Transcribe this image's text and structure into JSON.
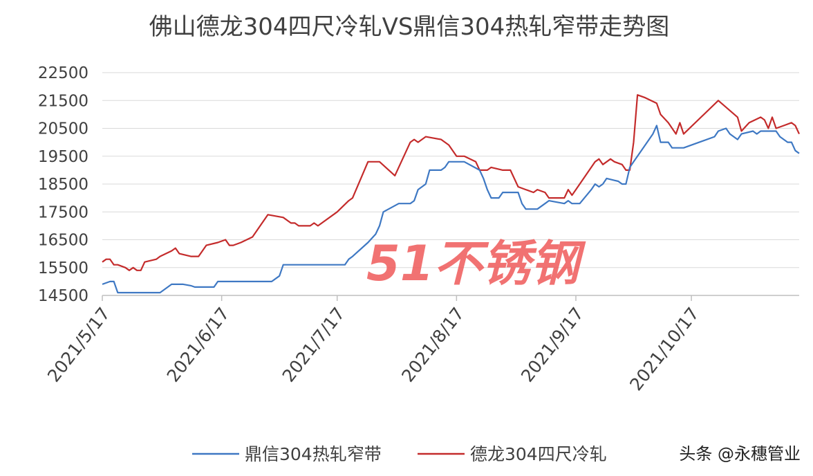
{
  "chart_data": {
    "type": "line",
    "title": "佛山德龙304四尺冷轧VS鼎信304热轧窄带走势图",
    "xlabel": "",
    "ylabel": "",
    "ylim": [
      14500,
      22500
    ],
    "yticks": [
      "22500",
      "21500",
      "20500",
      "19500",
      "18500",
      "17500",
      "16500",
      "15500",
      "14500"
    ],
    "xlim": [
      "2021-05-17",
      "2021-11-14"
    ],
    "xticks": [
      {
        "date": "2021-05-17",
        "label": "2021/5/17"
      },
      {
        "date": "2021-06-17",
        "label": "2021/6/17"
      },
      {
        "date": "2021-07-17",
        "label": "2021/7/17"
      },
      {
        "date": "2021-08-17",
        "label": "2021/8/17"
      },
      {
        "date": "2021-09-17",
        "label": "2021/9/17"
      },
      {
        "date": "2021-10-17",
        "label": "2021/10/17"
      }
    ],
    "grid": true,
    "legend": "bottom",
    "series": [
      {
        "name": "鼎信304热轧窄带",
        "color": "#3e78c3",
        "points": [
          [
            "2021-05-17",
            14900
          ],
          [
            "2021-05-19",
            15000
          ],
          [
            "2021-05-20",
            15000
          ],
          [
            "2021-05-21",
            14600
          ],
          [
            "2021-05-26",
            14600
          ],
          [
            "2021-06-01",
            14600
          ],
          [
            "2021-05-31",
            14600
          ],
          [
            "2021-06-01",
            14600
          ],
          [
            "2021-06-03",
            14800
          ],
          [
            "2021-06-04",
            14900
          ],
          [
            "2021-06-07",
            14900
          ],
          [
            "2021-06-09",
            14850
          ],
          [
            "2021-06-10",
            14800
          ],
          [
            "2021-06-14",
            14800
          ],
          [
            "2021-06-15",
            14800
          ],
          [
            "2021-06-16",
            15000
          ],
          [
            "2021-06-20",
            15000
          ],
          [
            "2021-06-25",
            15000
          ],
          [
            "2021-06-30",
            15000
          ],
          [
            "2021-07-02",
            15200
          ],
          [
            "2021-07-03",
            15600
          ],
          [
            "2021-07-08",
            15600
          ],
          [
            "2021-07-13",
            15600
          ],
          [
            "2021-07-19",
            15600
          ],
          [
            "2021-07-20",
            15800
          ],
          [
            "2021-07-21",
            15900
          ],
          [
            "2021-07-25",
            16400
          ],
          [
            "2021-07-27",
            16700
          ],
          [
            "2021-07-28",
            17000
          ],
          [
            "2021-07-29",
            17500
          ],
          [
            "2021-08-02",
            17800
          ],
          [
            "2021-08-05",
            17800
          ],
          [
            "2021-08-06",
            17900
          ],
          [
            "2021-08-07",
            18300
          ],
          [
            "2021-08-09",
            18500
          ],
          [
            "2021-08-10",
            19000
          ],
          [
            "2021-08-13",
            19000
          ],
          [
            "2021-08-14",
            19100
          ],
          [
            "2021-08-15",
            19300
          ],
          [
            "2021-08-19",
            19300
          ],
          [
            "2021-08-23",
            19000
          ],
          [
            "2021-08-24",
            18700
          ],
          [
            "2021-08-25",
            18300
          ],
          [
            "2021-08-26",
            18000
          ],
          [
            "2021-08-28",
            18000
          ],
          [
            "2021-08-29",
            18200
          ],
          [
            "2021-09-02",
            18200
          ],
          [
            "2021-09-03",
            17800
          ],
          [
            "2021-09-04",
            17600
          ],
          [
            "2021-09-07",
            17600
          ],
          [
            "2021-09-09",
            17800
          ],
          [
            "2021-09-10",
            17900
          ],
          [
            "2021-09-14",
            17800
          ],
          [
            "2021-09-15",
            17900
          ],
          [
            "2021-09-16",
            17800
          ],
          [
            "2021-09-18",
            17800
          ],
          [
            "2021-09-21",
            18300
          ],
          [
            "2021-09-22",
            18500
          ],
          [
            "2021-09-23",
            18400
          ],
          [
            "2021-09-24",
            18500
          ],
          [
            "2021-09-25",
            18700
          ],
          [
            "2021-09-28",
            18600
          ],
          [
            "2021-09-29",
            18500
          ],
          [
            "2021-09-30",
            18500
          ],
          [
            "2021-10-01",
            19100
          ],
          [
            "2021-10-02",
            19300
          ],
          [
            "2021-10-03",
            19500
          ],
          [
            "2021-10-07",
            20300
          ],
          [
            "2021-10-08",
            20600
          ],
          [
            "2021-10-09",
            20000
          ],
          [
            "2021-10-11",
            20000
          ],
          [
            "2021-10-12",
            19800
          ],
          [
            "2021-10-15",
            19800
          ],
          [
            "2021-10-23",
            20200
          ],
          [
            "2021-10-24",
            20400
          ],
          [
            "2021-10-26",
            20500
          ],
          [
            "2021-10-27",
            20300
          ],
          [
            "2021-10-29",
            20100
          ],
          [
            "2021-10-30",
            20300
          ],
          [
            "2021-11-02",
            20400
          ],
          [
            "2021-11-03",
            20300
          ],
          [
            "2021-11-04",
            20400
          ],
          [
            "2021-11-08",
            20400
          ],
          [
            "2021-11-09",
            20200
          ],
          [
            "2021-11-11",
            20000
          ],
          [
            "2021-11-12",
            20000
          ],
          [
            "2021-11-13",
            19700
          ],
          [
            "2021-11-14",
            19600
          ]
        ]
      },
      {
        "name": "德龙304四尺冷轧",
        "color": "#c42b2b",
        "points": [
          [
            "2021-05-17",
            15700
          ],
          [
            "2021-05-18",
            15800
          ],
          [
            "2021-05-19",
            15800
          ],
          [
            "2021-05-20",
            15600
          ],
          [
            "2021-05-21",
            15600
          ],
          [
            "2021-05-23",
            15500
          ],
          [
            "2021-05-24",
            15400
          ],
          [
            "2021-05-25",
            15500
          ],
          [
            "2021-05-26",
            15400
          ],
          [
            "2021-05-27",
            15400
          ],
          [
            "2021-05-28",
            15700
          ],
          [
            "2021-05-31",
            15800
          ],
          [
            "2021-06-01",
            15900
          ],
          [
            "2021-06-04",
            16100
          ],
          [
            "2021-06-05",
            16200
          ],
          [
            "2021-06-06",
            16000
          ],
          [
            "2021-06-09",
            15900
          ],
          [
            "2021-06-11",
            15900
          ],
          [
            "2021-06-13",
            16300
          ],
          [
            "2021-06-16",
            16400
          ],
          [
            "2021-06-18",
            16500
          ],
          [
            "2021-06-19",
            16300
          ],
          [
            "2021-06-20",
            16300
          ],
          [
            "2021-06-22",
            16400
          ],
          [
            "2021-06-25",
            16600
          ],
          [
            "2021-06-29",
            17400
          ],
          [
            "2021-07-03",
            17300
          ],
          [
            "2021-07-05",
            17100
          ],
          [
            "2021-07-06",
            17100
          ],
          [
            "2021-07-07",
            17000
          ],
          [
            "2021-07-10",
            17000
          ],
          [
            "2021-07-11",
            17100
          ],
          [
            "2021-07-12",
            17000
          ],
          [
            "2021-07-17",
            17500
          ],
          [
            "2021-07-20",
            17900
          ],
          [
            "2021-07-21",
            18000
          ],
          [
            "2021-07-25",
            19300
          ],
          [
            "2021-07-28",
            19300
          ],
          [
            "2021-08-01",
            18800
          ],
          [
            "2021-08-05",
            20000
          ],
          [
            "2021-08-06",
            20100
          ],
          [
            "2021-08-07",
            20000
          ],
          [
            "2021-08-09",
            20200
          ],
          [
            "2021-08-13",
            20100
          ],
          [
            "2021-08-15",
            19900
          ],
          [
            "2021-08-17",
            19500
          ],
          [
            "2021-08-19",
            19500
          ],
          [
            "2021-08-22",
            19300
          ],
          [
            "2021-08-23",
            19000
          ],
          [
            "2021-08-25",
            19000
          ],
          [
            "2021-08-26",
            19100
          ],
          [
            "2021-08-29",
            19000
          ],
          [
            "2021-08-31",
            19000
          ],
          [
            "2021-09-02",
            18400
          ],
          [
            "2021-09-04",
            18300
          ],
          [
            "2021-09-06",
            18200
          ],
          [
            "2021-09-07",
            18300
          ],
          [
            "2021-09-09",
            18200
          ],
          [
            "2021-09-10",
            18000
          ],
          [
            "2021-09-13",
            18000
          ],
          [
            "2021-09-14",
            18000
          ],
          [
            "2021-09-15",
            18300
          ],
          [
            "2021-09-16",
            18100
          ],
          [
            "2021-09-17",
            18300
          ],
          [
            "2021-09-20",
            18900
          ],
          [
            "2021-09-22",
            19300
          ],
          [
            "2021-09-23",
            19400
          ],
          [
            "2021-09-24",
            19200
          ],
          [
            "2021-09-26",
            19400
          ],
          [
            "2021-09-27",
            19300
          ],
          [
            "2021-09-29",
            19200
          ],
          [
            "2021-09-30",
            19000
          ],
          [
            "2021-10-01",
            19000
          ],
          [
            "2021-10-02",
            20000
          ],
          [
            "2021-10-03",
            21700
          ],
          [
            "2021-10-05",
            21600
          ],
          [
            "2021-10-08",
            21400
          ],
          [
            "2021-10-09",
            21000
          ],
          [
            "2021-10-11",
            20700
          ],
          [
            "2021-10-13",
            20300
          ],
          [
            "2021-10-14",
            20700
          ],
          [
            "2021-10-15",
            20300
          ],
          [
            "2021-10-24",
            21500
          ],
          [
            "2021-10-29",
            20900
          ],
          [
            "2021-10-30",
            20400
          ],
          [
            "2021-11-01",
            20700
          ],
          [
            "2021-11-04",
            20900
          ],
          [
            "2021-11-05",
            20800
          ],
          [
            "2021-11-06",
            20500
          ],
          [
            "2021-11-07",
            20900
          ],
          [
            "2021-11-08",
            20500
          ],
          [
            "2021-11-10",
            20600
          ],
          [
            "2021-11-12",
            20700
          ],
          [
            "2021-11-13",
            20600
          ],
          [
            "2021-11-14",
            20300
          ]
        ]
      }
    ]
  },
  "watermark": "51不锈钢",
  "credit": "头条 @永穗管业"
}
